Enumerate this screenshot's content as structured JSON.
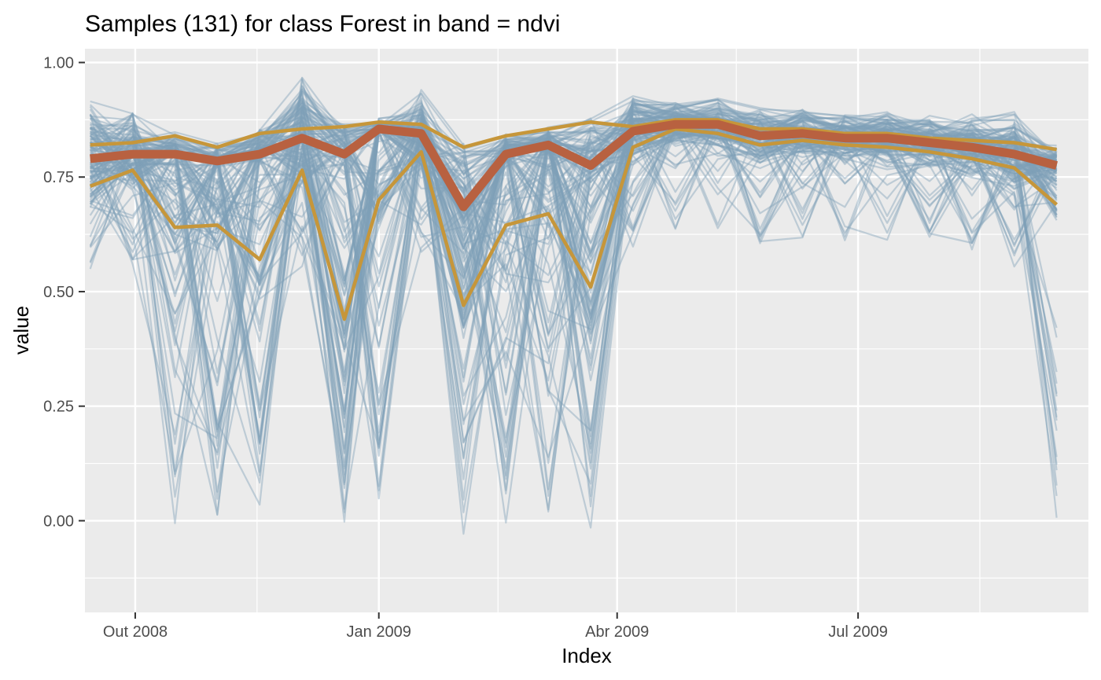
{
  "chart_data": {
    "type": "line",
    "title": "Samples (131) for class Forest in band = ndvi",
    "xlabel": "Index",
    "ylabel": "value",
    "x_axis": "date",
    "xlim": [
      "2008-09-12",
      "2009-09-26"
    ],
    "ylim": [
      -0.2,
      1.03
    ],
    "y_ticks": [
      0.0,
      0.25,
      0.5,
      0.75,
      1.0
    ],
    "y_tick_labels": [
      "0.00",
      "0.25",
      "0.50",
      "0.75",
      "1.00"
    ],
    "x_ticks": [
      "2008-10-01",
      "2009-01-01",
      "2009-04-01",
      "2009-07-01"
    ],
    "x_tick_labels": [
      "Out 2008",
      "Jan 2009",
      "Abr 2009",
      "Jul 2009"
    ],
    "grid": true,
    "legend": "none",
    "colors": {
      "panel_background": "#ebebeb",
      "grid": "#ffffff",
      "samples": "#7f9fb7",
      "median": "#b86140",
      "quantiles": "#c6963a"
    },
    "dates": [
      "2008-09-14",
      "2008-09-30",
      "2008-10-16",
      "2008-11-01",
      "2008-11-17",
      "2008-12-03",
      "2008-12-19",
      "2009-01-01",
      "2009-01-17",
      "2009-02-02",
      "2009-02-18",
      "2009-03-06",
      "2009-03-22",
      "2009-04-07",
      "2009-04-23",
      "2009-05-09",
      "2009-05-25",
      "2009-06-10",
      "2009-06-26",
      "2009-07-12",
      "2009-07-28",
      "2009-08-13",
      "2009-08-29",
      "2009-09-14"
    ],
    "series": [
      {
        "role": "median",
        "values": [
          0.79,
          0.8,
          0.8,
          0.785,
          0.8,
          0.835,
          0.8,
          0.855,
          0.845,
          0.685,
          0.8,
          0.82,
          0.775,
          0.85,
          0.865,
          0.865,
          0.84,
          0.845,
          0.835,
          0.835,
          0.825,
          0.815,
          0.8,
          0.775
        ]
      },
      {
        "role": "quantile",
        "values": [
          0.73,
          0.765,
          0.64,
          0.645,
          0.57,
          0.765,
          0.44,
          0.7,
          0.805,
          0.47,
          0.645,
          0.67,
          0.51,
          0.815,
          0.855,
          0.845,
          0.82,
          0.83,
          0.82,
          0.815,
          0.805,
          0.79,
          0.77,
          0.69
        ]
      },
      {
        "role": "quantile",
        "values": [
          0.82,
          0.825,
          0.84,
          0.815,
          0.845,
          0.855,
          0.86,
          0.87,
          0.865,
          0.815,
          0.84,
          0.855,
          0.87,
          0.86,
          0.875,
          0.875,
          0.855,
          0.855,
          0.845,
          0.845,
          0.835,
          0.83,
          0.825,
          0.81
        ]
      }
    ]
  }
}
